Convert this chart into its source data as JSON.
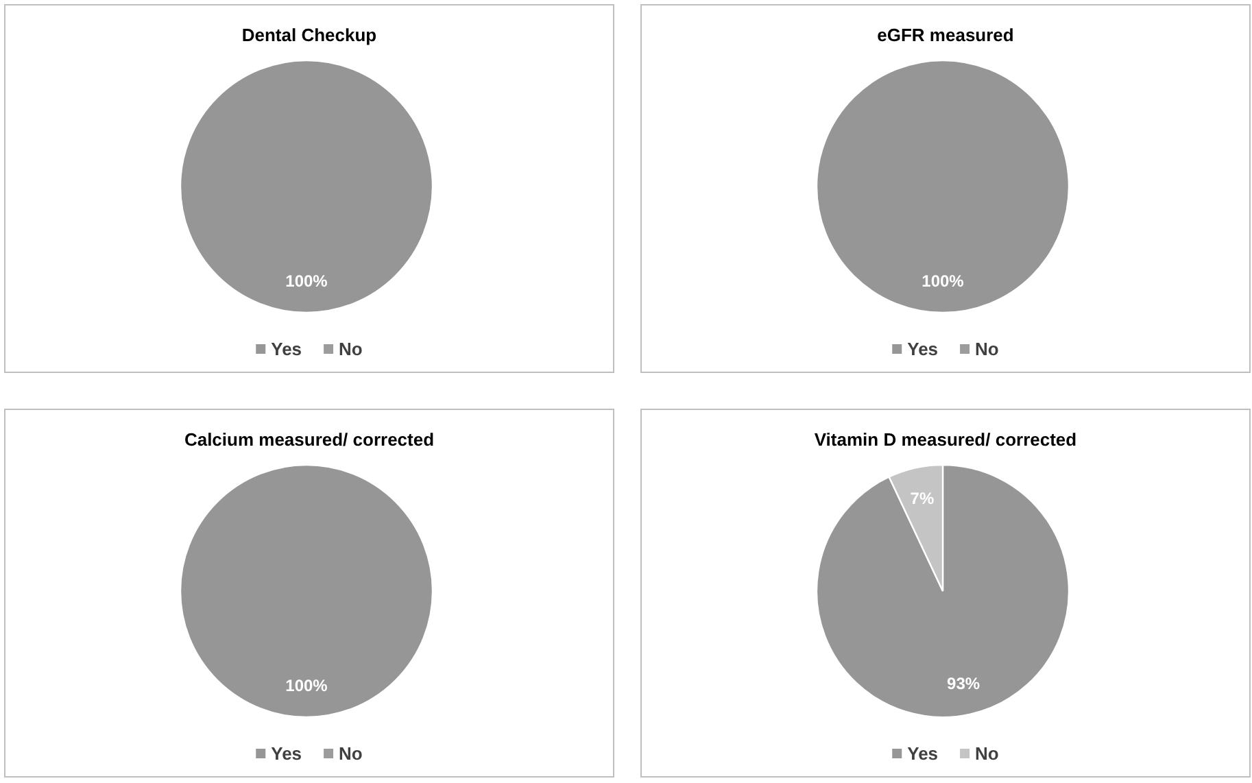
{
  "chart_data": [
    {
      "type": "pie",
      "title": "Dental Checkup",
      "categories": [
        "Yes",
        "No"
      ],
      "values": [
        100,
        0
      ],
      "colors": [
        "#969696",
        "#9c9c9c"
      ],
      "value_labels": [
        "100%",
        null
      ],
      "legend": "bottom"
    },
    {
      "type": "pie",
      "title": "eGFR measured",
      "categories": [
        "Yes",
        "No"
      ],
      "values": [
        100,
        0
      ],
      "colors": [
        "#969696",
        "#9c9c9c"
      ],
      "value_labels": [
        "100%",
        null
      ],
      "legend": "bottom"
    },
    {
      "type": "pie",
      "title": "Calcium measured/ corrected",
      "categories": [
        "Yes",
        "No"
      ],
      "values": [
        100,
        0
      ],
      "colors": [
        "#969696",
        "#9c9c9c"
      ],
      "value_labels": [
        "100%",
        null
      ],
      "legend": "bottom"
    },
    {
      "type": "pie",
      "title": "Vitamin D measured/ corrected",
      "categories": [
        "Yes",
        "No"
      ],
      "values": [
        93,
        7
      ],
      "colors": [
        "#969696",
        "#c4c4c4"
      ],
      "value_labels": [
        "93%",
        "7%"
      ],
      "legend": "bottom"
    }
  ]
}
